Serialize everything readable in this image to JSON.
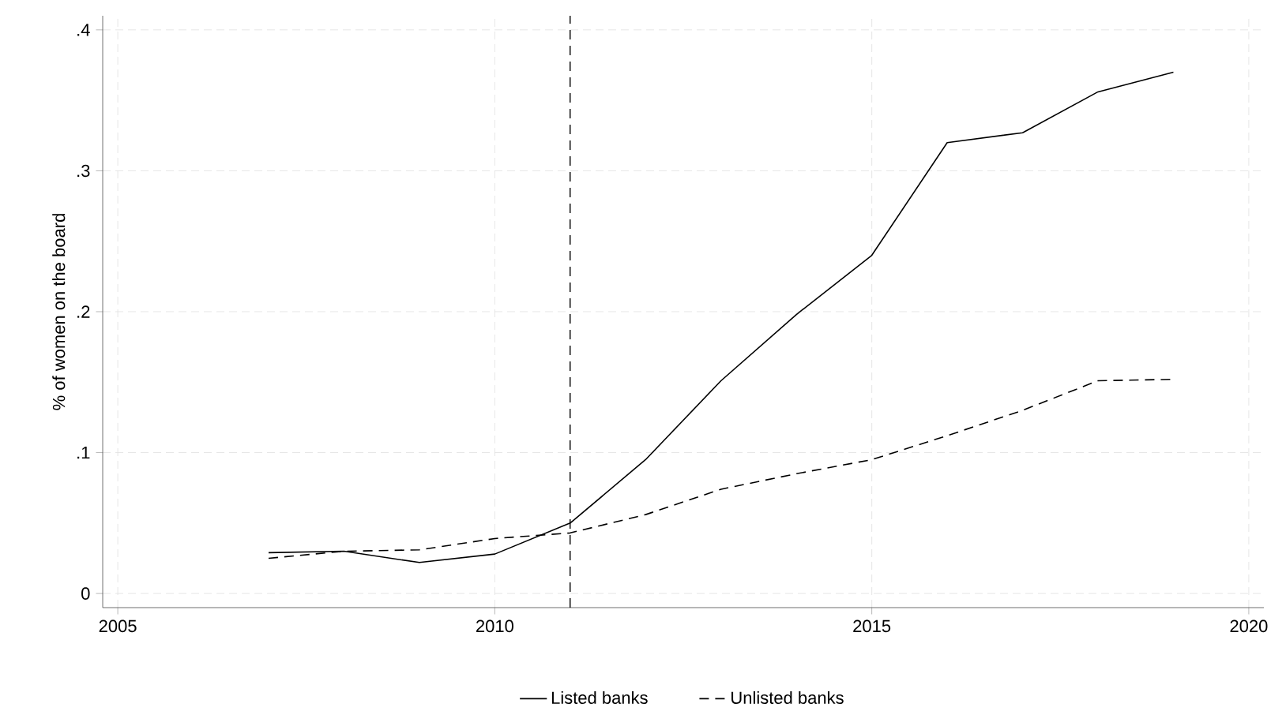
{
  "chart_data": {
    "type": "line",
    "ylabel": "% of women on the board",
    "x": [
      2007,
      2008,
      2009,
      2010,
      2011,
      2012,
      2013,
      2014,
      2015,
      2016,
      2017,
      2018,
      2019
    ],
    "series": [
      {
        "name": "Listed banks",
        "color": "#000000",
        "line_style": "solid",
        "values": [
          0.029,
          0.03,
          0.022,
          0.028,
          0.05,
          0.095,
          0.151,
          0.198,
          0.24,
          0.32,
          0.327,
          0.356,
          0.37
        ]
      },
      {
        "name": "Unlisted banks",
        "color": "#000000",
        "line_style": "dashed",
        "values": [
          0.025,
          0.03,
          0.031,
          0.039,
          0.043,
          0.056,
          0.074,
          0.085,
          0.095,
          0.112,
          0.13,
          0.151,
          0.152
        ]
      }
    ],
    "xlim": [
      2004.8,
      2020.2
    ],
    "xticks": [
      2005,
      2010,
      2015,
      2020
    ],
    "ylim": [
      -0.01,
      0.41
    ],
    "yticks": [
      0,
      {
        "value": 0.1,
        "label": ".1"
      },
      {
        "value": 0.2,
        "label": ".2"
      },
      {
        "value": 0.3,
        "label": ".3"
      },
      {
        "value": 0.4,
        "label": ".4"
      }
    ],
    "ref_lines": [
      {
        "axis": "x",
        "value": 2011,
        "label": null,
        "color": "#000000",
        "line_style": "dashed"
      }
    ],
    "grid": true,
    "legend": "bottom",
    "marker": "none"
  }
}
